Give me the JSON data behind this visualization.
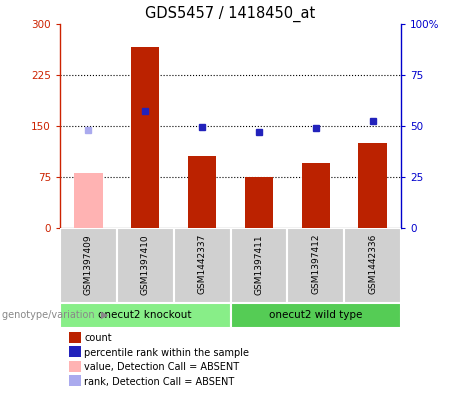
{
  "title": "GDS5457 / 1418450_at",
  "samples": [
    "GSM1397409",
    "GSM1397410",
    "GSM1442337",
    "GSM1397411",
    "GSM1397412",
    "GSM1442336"
  ],
  "bar_values": [
    80,
    265,
    105,
    75,
    95,
    125
  ],
  "bar_colors": [
    "#ffb3b3",
    "#bb2200",
    "#bb2200",
    "#bb2200",
    "#bb2200",
    "#bb2200"
  ],
  "rank_percentiles": [
    48,
    57,
    49.3,
    47,
    49,
    52.3
  ],
  "rank_colors": [
    "#aaaaee",
    "#2222bb",
    "#2222bb",
    "#2222bb",
    "#2222bb",
    "#2222bb"
  ],
  "ylim_left": [
    0,
    300
  ],
  "ylim_right": [
    0,
    100
  ],
  "yticks_left": [
    0,
    75,
    150,
    225,
    300
  ],
  "yticks_right": [
    0,
    25,
    50,
    75,
    100
  ],
  "hlines": [
    75,
    150,
    225
  ],
  "groups": [
    {
      "label": "onecut2 knockout",
      "indices": [
        0,
        1,
        2
      ],
      "color": "#88ee88"
    },
    {
      "label": "onecut2 wild type",
      "indices": [
        3,
        4,
        5
      ],
      "color": "#55cc55"
    }
  ],
  "genotype_label": "genotype/variation",
  "legend_labels": [
    "count",
    "percentile rank within the sample",
    "value, Detection Call = ABSENT",
    "rank, Detection Call = ABSENT"
  ],
  "legend_colors": [
    "#bb2200",
    "#2222bb",
    "#ffb3b3",
    "#aaaaee"
  ],
  "left_axis_color": "#cc2200",
  "right_axis_color": "#0000cc",
  "bar_width": 0.5
}
